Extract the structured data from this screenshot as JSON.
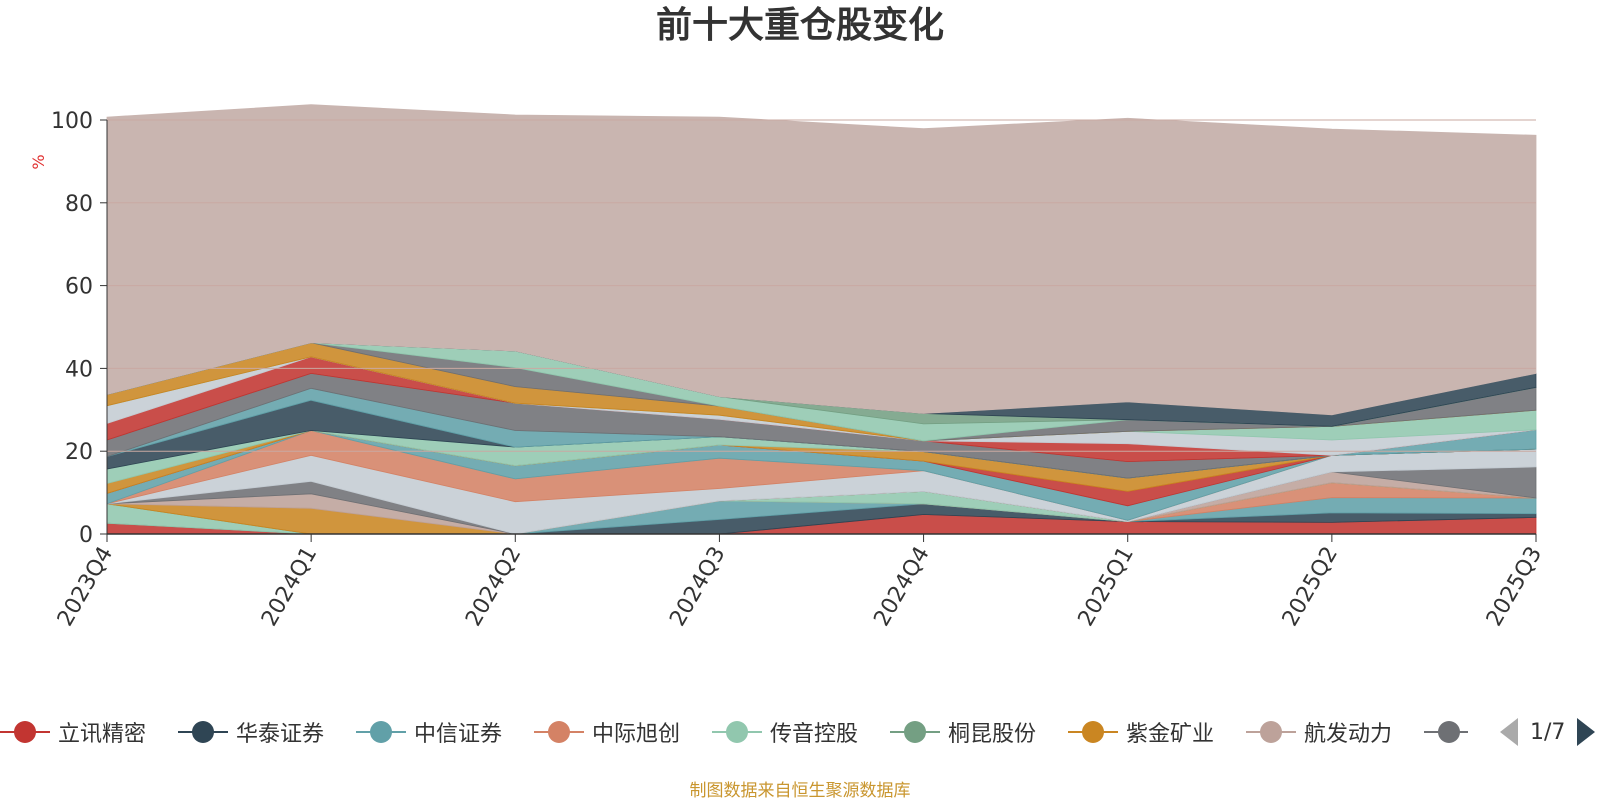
{
  "chart_data": {
    "type": "area",
    "stacked": true,
    "title": "前十大重仓股变化",
    "ylabel": "%",
    "ylim": [
      0,
      100
    ],
    "yticks": [
      0,
      20,
      40,
      60,
      80,
      100
    ],
    "grid": true,
    "categories": [
      "2023Q4",
      "2024Q1",
      "2024Q2",
      "2024Q3",
      "2024Q4",
      "2025Q1",
      "2025Q2",
      "2025Q3"
    ],
    "series": [
      {
        "name": "立讯精密",
        "color": "#c23531",
        "values": [
          2.6,
          0,
          0,
          0,
          4.7,
          3.0,
          2.8,
          4.0
        ]
      },
      {
        "name": "华泰证券",
        "color": "#2f4554",
        "values": [
          0,
          0,
          0,
          3.5,
          2.6,
          0,
          2.3,
          0.9
        ]
      },
      {
        "name": "中信证券",
        "color": "#61a0a8",
        "values": [
          0,
          0,
          0,
          4.5,
          0,
          0,
          3.7,
          3.8
        ]
      },
      {
        "name": "中际旭创",
        "color": "#d48265",
        "values": [
          0,
          0,
          0,
          0,
          0,
          0,
          3.6,
          0
        ]
      },
      {
        "name": "传音控股",
        "color": "#91c7ae",
        "values": [
          4.7,
          0,
          0,
          0,
          3.0,
          0,
          0,
          0
        ]
      },
      {
        "name": "桐昆股份",
        "color": "#749f83",
        "values": [
          0,
          0,
          0,
          0,
          0,
          0,
          0,
          0
        ]
      },
      {
        "name": "紫金矿业",
        "color": "#ca8622",
        "values": [
          0,
          6.2,
          0,
          0,
          0,
          0,
          0,
          0
        ]
      },
      {
        "name": "航发动力",
        "color": "#bda29a",
        "values": [
          0,
          3.5,
          0,
          0,
          0,
          0,
          2.6,
          0
        ]
      },
      {
        "name": "",
        "color": "#6e7074",
        "values": [
          0,
          3.0,
          0,
          0,
          0,
          0,
          0,
          7.5
        ]
      },
      {
        "name": "",
        "color": "#c4ccd3",
        "values": [
          0,
          6.3,
          7.8,
          3.0,
          5.0,
          0.3,
          4.0,
          4.3
        ]
      },
      {
        "name": "",
        "color": "#d48265",
        "values": [
          0,
          6.0,
          5.5,
          7.3,
          0,
          0,
          0,
          0
        ]
      },
      {
        "name": "",
        "color": "#61a0a8",
        "values": [
          2.5,
          0,
          3.2,
          3.2,
          2.3,
          3.5,
          0,
          0
        ]
      },
      {
        "name": "",
        "color": "#c23531",
        "values": [
          0,
          0,
          0,
          0,
          0,
          3.5,
          0,
          0
        ]
      },
      {
        "name": "",
        "color": "#ca8622",
        "values": [
          2.4,
          0,
          0,
          0,
          2.3,
          3.2,
          0,
          0
        ]
      },
      {
        "name": "",
        "color": "#91c7ae",
        "values": [
          3.5,
          0,
          4.5,
          2.0,
          0,
          0,
          0,
          0
        ]
      },
      {
        "name": "",
        "color": "#2f4554",
        "values": [
          3.0,
          7.3,
          0,
          0,
          0,
          0,
          0,
          0
        ]
      },
      {
        "name": "",
        "color": "#61a0a8",
        "values": [
          0,
          2.9,
          4.0,
          0,
          0,
          0,
          0,
          4.7
        ]
      },
      {
        "name": "",
        "color": "#6e7074",
        "values": [
          4.0,
          3.6,
          6.6,
          4.2,
          2.6,
          4.0,
          0,
          0
        ]
      },
      {
        "name": "",
        "color": "#c23531",
        "values": [
          4.0,
          4.0,
          0,
          0,
          0,
          4.3,
          0,
          0
        ]
      },
      {
        "name": "",
        "color": "#c4ccd3",
        "values": [
          4.3,
          0,
          0,
          1.0,
          0,
          3.0,
          3.7,
          0
        ]
      },
      {
        "name": "",
        "color": "#91c7ae",
        "values": [
          0,
          0,
          0,
          0,
          0,
          0,
          3.3,
          4.7
        ]
      },
      {
        "name": "",
        "color": "#ca8622",
        "values": [
          2.7,
          3.4,
          4.0,
          2.2,
          0,
          0,
          0,
          0
        ]
      },
      {
        "name": "",
        "color": "#6e7074",
        "values": [
          0,
          0,
          4.6,
          0,
          0,
          2.8,
          0,
          5.5
        ]
      },
      {
        "name": "",
        "color": "#91c7ae",
        "values": [
          0,
          0,
          4.0,
          2.3,
          4.1,
          0,
          0,
          0
        ]
      },
      {
        "name": "",
        "color": "#749f83",
        "values": [
          0,
          0,
          0,
          0,
          2.5,
          0,
          0,
          0
        ]
      },
      {
        "name": "",
        "color": "#2f4554",
        "values": [
          0,
          0,
          0,
          0,
          0,
          4.3,
          2.8,
          3.4
        ]
      },
      {
        "name": "",
        "color": "#c9b5b0",
        "values": [
          67.0,
          57.5,
          57.0,
          67.5,
          68.8,
          68.5,
          69.0,
          57.5
        ]
      }
    ]
  },
  "legend": {
    "items": [
      {
        "label": "立讯精密",
        "color": "#c23531",
        "icon": "circle-marker"
      },
      {
        "label": "华泰证券",
        "color": "#2f4554",
        "icon": "circle-marker"
      },
      {
        "label": "中信证券",
        "color": "#61a0a8",
        "icon": "circle-marker"
      },
      {
        "label": "中际旭创",
        "color": "#d48265",
        "icon": "circle-marker"
      },
      {
        "label": "传音控股",
        "color": "#91c7ae",
        "icon": "circle-marker"
      },
      {
        "label": "桐昆股份",
        "color": "#749f83",
        "icon": "circle-marker"
      },
      {
        "label": "紫金矿业",
        "color": "#ca8622",
        "icon": "circle-marker"
      },
      {
        "label": "航发动力",
        "color": "#bda29a",
        "icon": "circle-marker"
      },
      {
        "label": "",
        "color": "#6e7074",
        "icon": "circle-marker"
      }
    ],
    "page_indicator": "1/7",
    "prev_icon": "triangle-left-icon",
    "next_icon": "triangle-right-icon"
  },
  "source_note": "制图数据来自恒生聚源数据库",
  "colors": {
    "axis": "#333333",
    "grid": "#c9a9a2",
    "ylabel": "#e03030",
    "source_note": "#c9962f"
  }
}
